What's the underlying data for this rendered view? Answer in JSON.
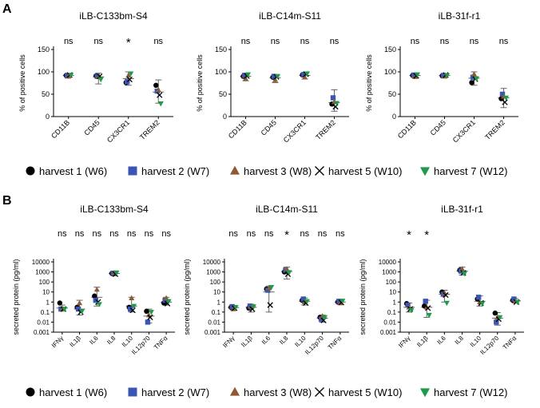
{
  "colors": {
    "harvest_1": "#000000",
    "harvest_2": "#3b55b4",
    "harvest_3": "#8e5a35",
    "harvest_5": "#000000",
    "harvest_7": "#1f9a4a",
    "axis": "#000000"
  },
  "panels": {
    "A": {
      "label": "A",
      "ylabel": "% of positive cells"
    },
    "B": {
      "label": "B",
      "ylabel": "secreted protein (pg/ml)"
    }
  },
  "legend": [
    {
      "key": "h1",
      "label": "harvest 1 (W6)",
      "marker": "circle",
      "color": "#000000"
    },
    {
      "key": "h2",
      "label": "harvest 2 (W7)",
      "marker": "square",
      "color": "#3b55b4"
    },
    {
      "key": "h3",
      "label": "harvest 3 (W8)",
      "marker": "triangle-up",
      "color": "#8e5a35"
    },
    {
      "key": "h5",
      "label": "harvest 5 (W10)",
      "marker": "x",
      "color": "#000000"
    },
    {
      "key": "h7",
      "label": "harvest 7 (W12)",
      "marker": "triangle-down",
      "color": "#1f9a4a"
    }
  ],
  "chart_data": [
    {
      "type": "scatter",
      "panel": "A",
      "title": "iLB-C133bm-S4",
      "ylabel": "% of positive cells",
      "ylim": [
        0,
        150
      ],
      "yticks": [
        "0",
        "50",
        "100",
        "150"
      ],
      "categories": [
        "CD11B",
        "CD45",
        "CX3CR1",
        "TREM2"
      ],
      "significance": [
        "ns",
        "ns",
        "*",
        "ns"
      ],
      "series": [
        {
          "name": "harvest 1 (W6)",
          "values": [
            92,
            91,
            76,
            70
          ]
        },
        {
          "name": "harvest 2 (W7)",
          "values": [
            91,
            90,
            78,
            57
          ]
        },
        {
          "name": "harvest 3 (W8)",
          "values": [
            90,
            89,
            92,
            60
          ]
        },
        {
          "name": "harvest 5 (W10)",
          "values": [
            93,
            90,
            83,
            48
          ]
        },
        {
          "name": "harvest 7 (W12)",
          "values": [
            93,
            83,
            96,
            29
          ]
        }
      ],
      "errors": [
        {
          "mean": 92,
          "low": 89,
          "high": 95
        },
        {
          "mean": 89,
          "low": 73,
          "high": 97
        },
        {
          "mean": 85,
          "low": 70,
          "high": 100
        },
        {
          "mean": 55,
          "low": 30,
          "high": 82
        }
      ]
    },
    {
      "type": "scatter",
      "panel": "A",
      "title": "iLB-C14m-S11",
      "ylabel": "% of positive cells",
      "ylim": [
        0,
        150
      ],
      "yticks": [
        "0",
        "50",
        "100",
        "150"
      ],
      "categories": [
        "CD11B",
        "CD45",
        "CX3CR1",
        "TREM2"
      ],
      "significance": [
        "ns",
        "ns",
        "ns",
        "ns"
      ],
      "series": [
        {
          "name": "harvest 1 (W6)",
          "values": [
            90,
            88,
            93,
            28
          ]
        },
        {
          "name": "harvest 2 (W7)",
          "values": [
            92,
            90,
            94,
            42
          ]
        },
        {
          "name": "harvest 3 (W8)",
          "values": [
            85,
            82,
            88,
            33
          ]
        },
        {
          "name": "harvest 5 (W10)",
          "values": [
            91,
            89,
            95,
            22
          ]
        },
        {
          "name": "harvest 7 (W12)",
          "values": [
            94,
            90,
            96,
            30
          ]
        }
      ],
      "errors": [
        {
          "mean": 90,
          "low": 80,
          "high": 97
        },
        {
          "mean": 87,
          "low": 76,
          "high": 94
        },
        {
          "mean": 92,
          "low": 84,
          "high": 98
        },
        {
          "mean": 31,
          "low": 12,
          "high": 60
        }
      ]
    },
    {
      "type": "scatter",
      "panel": "A",
      "title": "iLB-31f-r1",
      "ylabel": "% of positive cells",
      "ylim": [
        0,
        150
      ],
      "yticks": [
        "0",
        "50",
        "100",
        "150"
      ],
      "categories": [
        "CD11B",
        "CD45",
        "CX3CR1",
        "TREM2"
      ],
      "significance": [
        "ns",
        "ns",
        "ns",
        "ns"
      ],
      "series": [
        {
          "name": "harvest 1 (W6)",
          "values": [
            92,
            91,
            76,
            40
          ]
        },
        {
          "name": "harvest 2 (W7)",
          "values": [
            93,
            92,
            88,
            50
          ]
        },
        {
          "name": "harvest 3 (W8)",
          "values": [
            89,
            90,
            95,
            45
          ]
        },
        {
          "name": "harvest 5 (W10)",
          "values": [
            91,
            93,
            84,
            32
          ]
        },
        {
          "name": "harvest 7 (W12)",
          "values": [
            94,
            92,
            85,
            42
          ]
        }
      ],
      "errors": [
        {
          "mean": 92,
          "low": 88,
          "high": 95
        },
        {
          "mean": 92,
          "low": 88,
          "high": 96
        },
        {
          "mean": 86,
          "low": 70,
          "high": 100
        },
        {
          "mean": 42,
          "low": 20,
          "high": 63
        }
      ]
    },
    {
      "type": "scatter",
      "panel": "B",
      "title": "iLB-C133bm-S4",
      "ylabel": "secreted protein (pg/ml)",
      "yscale": "log",
      "ylim": [
        0.001,
        10000
      ],
      "yticks": [
        "0.001",
        "0.01",
        "0.1",
        "1",
        "10",
        "100",
        "1000",
        "10000"
      ],
      "categories": [
        "IFNγ",
        "IL1β",
        "IL6",
        "IL8",
        "IL10",
        "IL12p70",
        "TNFα"
      ],
      "significance": [
        "ns",
        "ns",
        "ns",
        "ns",
        "ns",
        "ns",
        "ns"
      ],
      "series": [
        {
          "name": "harvest 1 (W6)",
          "values": [
            0.8,
            0.3,
            4,
            700,
            0.3,
            0.12,
            0.8
          ]
        },
        {
          "name": "harvest 2 (W7)",
          "values": [
            0.2,
            0.2,
            1.5,
            750,
            0.2,
            0.01,
            1.5
          ]
        },
        {
          "name": "harvest 3 (W8)",
          "values": [
            0.2,
            0.8,
            18,
            800,
            2.5,
            0.05,
            2.5
          ]
        },
        {
          "name": "harvest 5 (W10)",
          "values": [
            0.2,
            0.1,
            1,
            600,
            0.15,
            0.03,
            0.7
          ]
        },
        {
          "name": "harvest 7 (W12)",
          "values": [
            0.2,
            0.12,
            0.6,
            850,
            0.4,
            0.1,
            1.2
          ]
        }
      ],
      "errors": [
        {
          "mean": 0.25,
          "low": 0.15,
          "high": 0.5
        },
        {
          "mean": 0.2,
          "low": 0.05,
          "high": 1.5
        },
        {
          "mean": 3,
          "low": 0.4,
          "high": 30
        },
        {
          "mean": 700,
          "low": 400,
          "high": 1000
        },
        {
          "mean": 0.4,
          "low": 0.1,
          "high": 3
        },
        {
          "mean": 0.04,
          "low": 0.008,
          "high": 0.2
        },
        {
          "mean": 1,
          "low": 0.5,
          "high": 3
        }
      ]
    },
    {
      "type": "scatter",
      "panel": "B",
      "title": "iLB-C14m-S11",
      "ylabel": "secreted protein (pg/ml)",
      "yscale": "log",
      "ylim": [
        0.001,
        10000
      ],
      "yticks": [
        "0.001",
        "0.01",
        "0.1",
        "1",
        "10",
        "100",
        "1000",
        "10000"
      ],
      "categories": [
        "IFNγ",
        "IL1β",
        "IL6",
        "IL8",
        "IL10",
        "IL12p70",
        "TNFα"
      ],
      "significance": [
        "ns",
        "ns",
        "ns",
        "*",
        "ns",
        "ns",
        "ns"
      ],
      "series": [
        {
          "name": "harvest 1 (W6)",
          "values": [
            0.3,
            0.25,
            20,
            1000,
            1.5,
            0.03,
            1
          ]
        },
        {
          "name": "harvest 2 (W7)",
          "values": [
            0.35,
            0.4,
            15,
            1500,
            2,
            0.02,
            1.2
          ]
        },
        {
          "name": "harvest 3 (W8)",
          "values": [
            0.2,
            0.3,
            25,
            2000,
            1,
            0.04,
            0.8
          ]
        },
        {
          "name": "harvest 5 (W10)",
          "values": [
            0.25,
            0.2,
            0.5,
            600,
            0.8,
            0.015,
            0.9
          ]
        },
        {
          "name": "harvest 7 (W12)",
          "values": [
            0.3,
            0.35,
            30,
            900,
            1.2,
            0.03,
            1.3
          ]
        }
      ],
      "errors": [
        {
          "mean": 0.28,
          "low": 0.15,
          "high": 0.45
        },
        {
          "mean": 0.3,
          "low": 0.1,
          "high": 0.6
        },
        {
          "mean": 10,
          "low": 0.1,
          "high": 40
        },
        {
          "mean": 1100,
          "low": 200,
          "high": 3000
        },
        {
          "mean": 1.2,
          "low": 0.5,
          "high": 2.5
        },
        {
          "mean": 0.025,
          "low": 0.01,
          "high": 0.05
        },
        {
          "mean": 1,
          "low": 0.6,
          "high": 1.6
        }
      ]
    },
    {
      "type": "scatter",
      "panel": "B",
      "title": "iLB-31f-r1",
      "ylabel": "secreted protein (pg/ml)",
      "yscale": "log",
      "ylim": [
        0.001,
        10000
      ],
      "yticks": [
        "0.001",
        "0.01",
        "0.1",
        "1",
        "10",
        "100",
        "1000",
        "10000"
      ],
      "categories": [
        "IFNγ",
        "IL1β",
        "IL6",
        "IL8",
        "IL10",
        "IL12p70",
        "TNFα"
      ],
      "significance": [
        "*",
        "*",
        "",
        "",
        "",
        "",
        ""
      ],
      "series": [
        {
          "name": "harvest 1 (W6)",
          "values": [
            0.7,
            0.4,
            10,
            1500,
            2,
            0.08,
            1.5
          ]
        },
        {
          "name": "harvest 2 (W7)",
          "values": [
            0.5,
            1.2,
            6,
            1200,
            3,
            0.01,
            2
          ]
        },
        {
          "name": "harvest 3 (W8)",
          "values": [
            0.3,
            0.3,
            8,
            2000,
            1,
            0.03,
            1.2
          ]
        },
        {
          "name": "harvest 5 (W10)",
          "values": [
            0.2,
            0.25,
            5,
            800,
            0.8,
            0.02,
            1
          ]
        },
        {
          "name": "harvest 7 (W12)",
          "values": [
            0.15,
            0.05,
            0.8,
            700,
            0.7,
            0.03,
            1
          ]
        }
      ],
      "errors": [
        {
          "mean": 0.3,
          "low": 0.1,
          "high": 0.8
        },
        {
          "mean": 0.3,
          "low": 0.03,
          "high": 1.5
        },
        {
          "mean": 6,
          "low": 1,
          "high": 15
        },
        {
          "mean": 1200,
          "low": 500,
          "high": 3000
        },
        {
          "mean": 1.2,
          "low": 0.4,
          "high": 4
        },
        {
          "mean": 0.025,
          "low": 0.005,
          "high": 0.09
        },
        {
          "mean": 1.3,
          "low": 0.8,
          "high": 2.2
        }
      ]
    }
  ]
}
